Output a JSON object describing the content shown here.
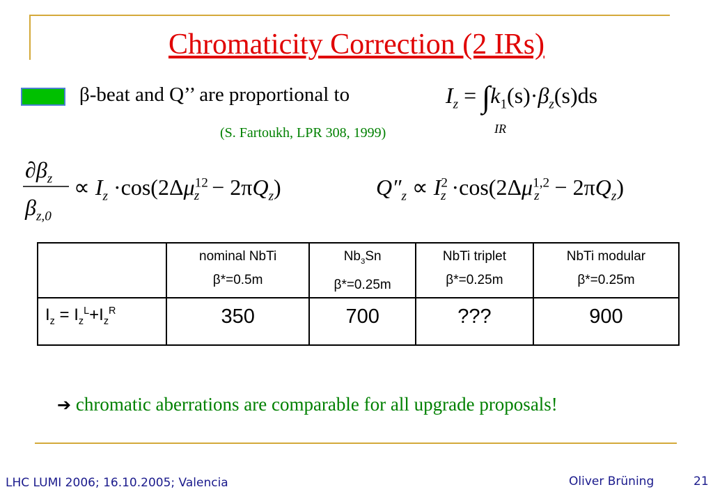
{
  "header": {
    "title": "Chromaticity Correction (2 IRs)"
  },
  "bullet": {
    "text": "β-beat and Q’’ are proportional to",
    "citation": "(S. Fartoukh, LPR 308, 1999)"
  },
  "formula_integral": {
    "lhs": "I",
    "lhs_sub": "z",
    "eq": "=",
    "integral": "∫",
    "limit": "IR",
    "k": "k",
    "k_sub": "1",
    "mid": "(s)·",
    "beta": "β",
    "beta_sub": "z",
    "tail": "(s)ds"
  },
  "formula_beta": {
    "num": "∂β",
    "num_sub": "z",
    "den": "β",
    "den_sub": "z,0",
    "prop": "∝",
    "I": "I",
    "I_sub": "z",
    "cos": "·cos(2Δ",
    "mu": "μ",
    "mu_sub": "z",
    "mu_sup": "12",
    "minus": "− 2π",
    "Q": "Q",
    "Q_sub": "z",
    "close": ")"
  },
  "formula_chroma": {
    "Q": "Q″",
    "Q_sub": "z",
    "prop": "∝",
    "I": "I",
    "I_sub": "z",
    "I_sup": "2",
    "cos": "·cos(2Δ",
    "mu": "μ",
    "mu_sub": "z",
    "mu_sup": "1,2",
    "minus": "− 2π",
    "Q2": "Q",
    "Q2_sub": "z",
    "close": ")"
  },
  "table": {
    "header": [
      {
        "line1": "nominal NbTi",
        "line2": "β*=0.5m"
      },
      {
        "line1": "Nb",
        "line1_sub": "3",
        "line1_tail": "Sn",
        "line2": "β*=0.25m"
      },
      {
        "line1": "NbTi triplet",
        "line2": "β*=0.25m"
      },
      {
        "line1": "NbTi modular",
        "line2": "β*=0.25m"
      }
    ],
    "row_label": {
      "a": "I",
      "a_sub": "z",
      "b": " = I",
      "b_sub": "z",
      "b_sup": "L",
      "c": "+I",
      "c_sub": "z",
      "c_sup": "R"
    },
    "values": [
      350,
      700,
      "???",
      900
    ]
  },
  "conclusion": {
    "arrow": "➔",
    "text": "chromatic aberrations are comparable for all upgrade proposals!"
  },
  "footer": {
    "left": "LHC LUMI 2006; 16.10.2005; Valencia",
    "author": "Oliver Brüning",
    "page": "21"
  }
}
